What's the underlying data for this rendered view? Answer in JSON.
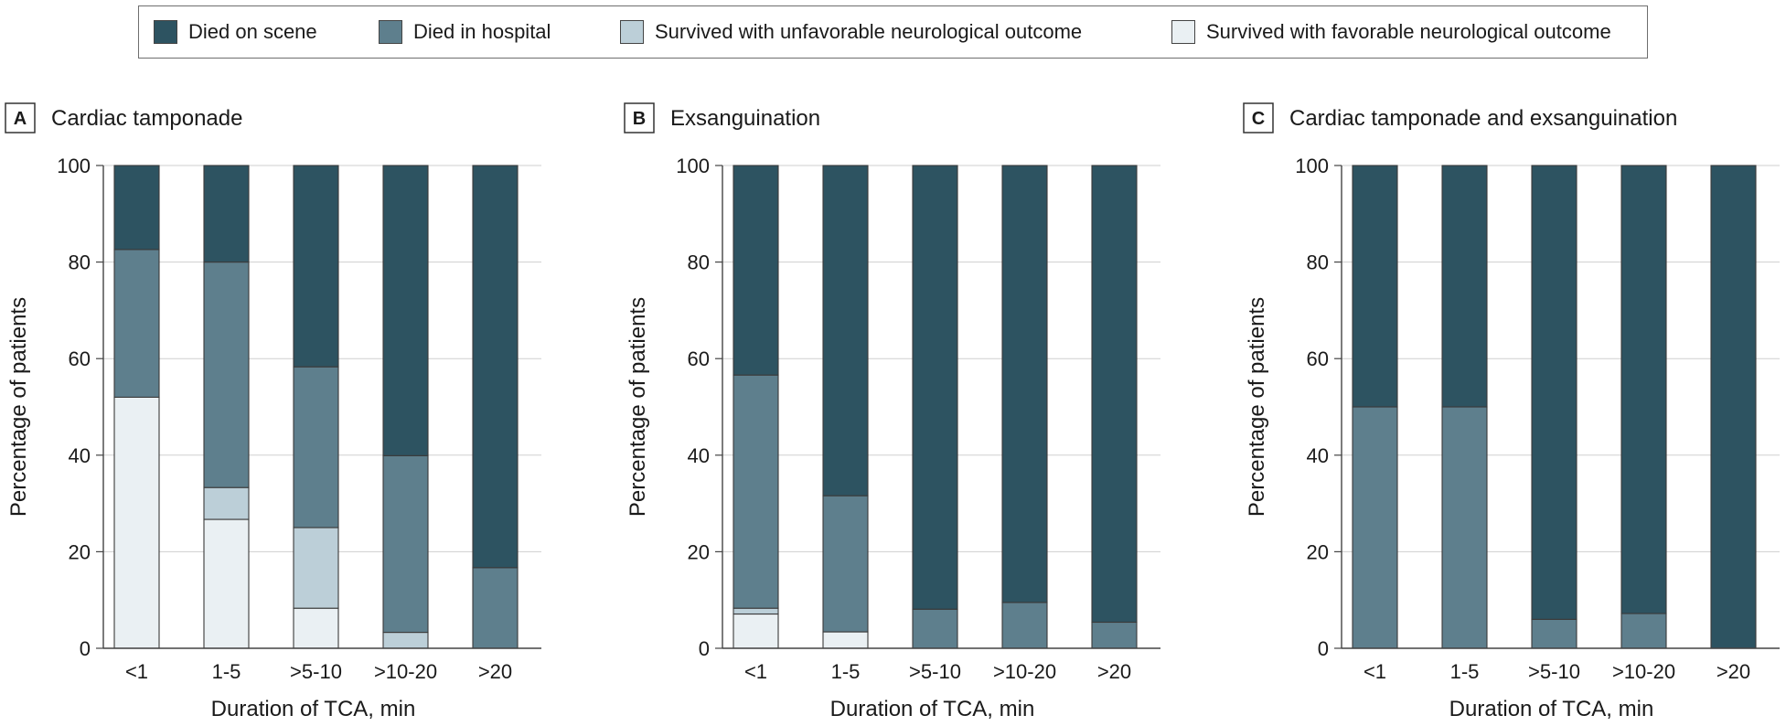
{
  "legend": {
    "items": [
      {
        "label": "Died on scene",
        "color": "#2d5361"
      },
      {
        "label": "Died in hospital",
        "color": "#5e7f8d"
      },
      {
        "label": "Survived with unfavorable neurological outcome",
        "color": "#bccfd8"
      },
      {
        "label": "Survived with favorable neurological outcome",
        "color": "#eaf0f3"
      }
    ]
  },
  "chart_data": [
    {
      "type": "bar",
      "stacked": true,
      "panel_letter": "A",
      "title": "Cardiac tamponade",
      "xlabel": "Duration of TCA, min",
      "ylabel": "Percentage of patients",
      "ylim": [
        0,
        100
      ],
      "yticks": [
        0,
        20,
        40,
        60,
        80,
        100
      ],
      "grid": true,
      "categories": [
        "<1",
        "1-5",
        ">5-10",
        ">10-20",
        ">20"
      ],
      "series": [
        {
          "name": "Survived with favorable neurological outcome",
          "values": [
            52,
            26.7,
            8.3,
            0,
            0
          ]
        },
        {
          "name": "Survived with unfavorable neurological outcome",
          "values": [
            0,
            6.6,
            16.7,
            3.3,
            0
          ]
        },
        {
          "name": "Died in hospital",
          "values": [
            30.6,
            46.7,
            33.3,
            36.6,
            16.7
          ]
        },
        {
          "name": "Died on scene",
          "values": [
            17.4,
            20,
            41.7,
            60.1,
            83.3
          ]
        }
      ]
    },
    {
      "type": "bar",
      "stacked": true,
      "panel_letter": "B",
      "title": "Exsanguination",
      "xlabel": "Duration of TCA, min",
      "ylabel": "Percentage of patients",
      "ylim": [
        0,
        100
      ],
      "yticks": [
        0,
        20,
        40,
        60,
        80,
        100
      ],
      "grid": true,
      "categories": [
        "<1",
        "1-5",
        ">5-10",
        ">10-20",
        ">20"
      ],
      "series": [
        {
          "name": "Survived with favorable neurological outcome",
          "values": [
            7.1,
            3.4,
            0,
            0,
            0
          ]
        },
        {
          "name": "Survived with unfavorable neurological outcome",
          "values": [
            1.2,
            0,
            0,
            0,
            0
          ]
        },
        {
          "name": "Died in hospital",
          "values": [
            48.3,
            28.2,
            8.1,
            9.5,
            5.4
          ]
        },
        {
          "name": "Died on scene",
          "values": [
            43.4,
            68.4,
            91.9,
            90.5,
            94.6
          ]
        }
      ]
    },
    {
      "type": "bar",
      "stacked": true,
      "panel_letter": "C",
      "title": "Cardiac tamponade and exsanguination",
      "xlabel": "Duration of TCA, min",
      "ylabel": "Percentage of patients",
      "ylim": [
        0,
        100
      ],
      "yticks": [
        0,
        20,
        40,
        60,
        80,
        100
      ],
      "grid": true,
      "categories": [
        "<1",
        "1-5",
        ">5-10",
        ">10-20",
        ">20"
      ],
      "series": [
        {
          "name": "Survived with favorable neurological outcome",
          "values": [
            0,
            0,
            0,
            0,
            0
          ]
        },
        {
          "name": "Survived with unfavorable neurological outcome",
          "values": [
            0,
            0,
            0,
            0,
            0
          ]
        },
        {
          "name": "Died in hospital",
          "values": [
            50,
            50,
            6,
            7.2,
            0
          ]
        },
        {
          "name": "Died on scene",
          "values": [
            50,
            50,
            94,
            92.8,
            100
          ]
        }
      ]
    }
  ]
}
